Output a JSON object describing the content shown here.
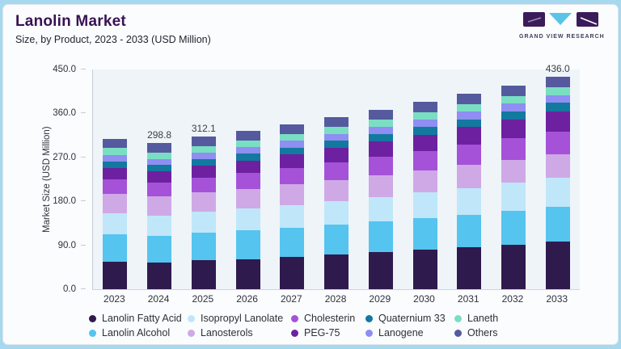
{
  "header": {
    "title": "Lanolin Market",
    "subtitle": "Size, by Product, 2023 - 2033 (USD Million)",
    "logo_text": "GRAND VIEW RESEARCH"
  },
  "colors": {
    "page_border": "#a6d8f0",
    "card_background": "#fafcfe",
    "plot_background": "#eff4f9",
    "title_text": "#3a1253",
    "logo_block": "#3b1b59",
    "logo_triangle": "#5ac3e8"
  },
  "chart_data": {
    "type": "bar",
    "stacked": true,
    "title": "Lanolin Market",
    "subtitle": "Size, by Product, 2023 - 2033 (USD Million)",
    "xlabel": "",
    "ylabel": "Market Size (USD Million)",
    "ylim": [
      0,
      450
    ],
    "yticks": [
      0,
      90,
      180,
      270,
      360,
      450
    ],
    "ytick_labels": [
      "0.0",
      "90.0",
      "180.0",
      "270.0",
      "360.0",
      "450.0"
    ],
    "grid": "off",
    "legend_position": "bottom",
    "categories": [
      "2023",
      "2024",
      "2025",
      "2026",
      "2027",
      "2028",
      "2029",
      "2030",
      "2031",
      "2032",
      "2033"
    ],
    "series": [
      {
        "name": "Lanolin Fatty Acid",
        "color": "#2f1a4e",
        "values": [
          56.0,
          54.4,
          59.0,
          61.9,
          66.1,
          70.6,
          75.4,
          80.5,
          86.0,
          91.8,
          98.0
        ]
      },
      {
        "name": "Lanolin Alcohol",
        "color": "#55c4ef",
        "values": [
          57.0,
          55.3,
          56.8,
          58.3,
          59.8,
          61.4,
          63.0,
          64.7,
          66.4,
          68.2,
          70.0
        ]
      },
      {
        "name": "Isopropyl Lanolate",
        "color": "#bfe7f9",
        "values": [
          42.5,
          41.2,
          43.0,
          44.8,
          46.7,
          48.7,
          50.8,
          53.0,
          55.2,
          57.6,
          60.0
        ]
      },
      {
        "name": "Lanosterols",
        "color": "#cfa9e6",
        "values": [
          40.0,
          38.8,
          39.8,
          40.9,
          42.0,
          43.1,
          44.2,
          45.4,
          46.6,
          47.8,
          49.0
        ]
      },
      {
        "name": "Cholesterin",
        "color": "#a552d8",
        "values": [
          29.5,
          28.6,
          30.2,
          31.9,
          33.6,
          35.5,
          37.5,
          39.5,
          41.7,
          44.0,
          46.5
        ]
      },
      {
        "name": "PEG-75",
        "color": "#6d21a0",
        "values": [
          23.5,
          22.8,
          24.3,
          26.0,
          27.7,
          29.6,
          31.6,
          33.7,
          36.0,
          38.4,
          41.0
        ]
      },
      {
        "name": "Quaternium 33",
        "color": "#12799f",
        "values": [
          13.5,
          13.1,
          13.5,
          14.0,
          14.4,
          14.9,
          15.4,
          15.9,
          16.4,
          16.9,
          17.5
        ]
      },
      {
        "name": "Lanogene",
        "color": "#8f8ef2",
        "values": [
          13.5,
          13.1,
          13.3,
          13.6,
          13.9,
          14.1,
          14.4,
          14.7,
          15.0,
          15.2,
          15.5
        ]
      },
      {
        "name": "Laneth",
        "color": "#7adec2",
        "values": [
          13.5,
          13.1,
          13.4,
          13.8,
          14.1,
          14.5,
          14.9,
          15.3,
          15.7,
          16.1,
          16.5
        ]
      },
      {
        "name": "Others",
        "color": "#555a9e",
        "values": [
          19.0,
          18.4,
          18.8,
          19.2,
          19.5,
          19.9,
          20.3,
          20.7,
          21.2,
          21.6,
          22.0
        ]
      }
    ],
    "bar_labels": {
      "2024": "298.8",
      "2025": "312.1",
      "2033": "436.0"
    },
    "legend_rows": [
      [
        "Lanolin Fatty Acid",
        "Isopropyl Lanolate",
        "Cholesterin",
        "Quaternium 33",
        "Laneth"
      ],
      [
        "Lanolin Alcohol",
        "Lanosterols",
        "PEG-75",
        "Lanogene",
        "Others"
      ]
    ]
  }
}
